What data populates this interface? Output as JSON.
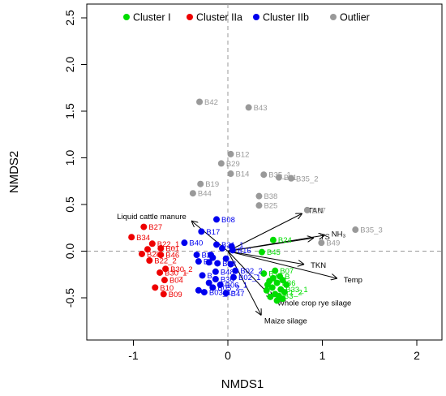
{
  "chart_data": {
    "type": "scatter",
    "xlabel": "NMDS1",
    "ylabel": "NMDS2",
    "xlim": [
      -1.5,
      2.2
    ],
    "ylim": [
      -0.9,
      2.55
    ],
    "x_ticks": [
      -1,
      0,
      1,
      2
    ],
    "y_ticks": [
      -0.5,
      0.0,
      0.5,
      1.0,
      1.5,
      2.0,
      2.5
    ],
    "x_tick_labels": [
      "-1",
      "0",
      "1",
      "2"
    ],
    "y_tick_labels": [
      "-0.5",
      "0.0",
      "0.5",
      "1.0",
      "1.5",
      "2.0",
      "2.5"
    ],
    "reference_lines": {
      "x": 0,
      "y": 0,
      "style": "dashed"
    },
    "legend_position": "top",
    "series": [
      {
        "name": "Cluster I",
        "color": "#00dd00",
        "points": [
          {
            "x": 0.48,
            "y": 0.12,
            "label": "B24"
          },
          {
            "x": 0.36,
            "y": -0.01,
            "label": "B45"
          },
          {
            "x": 0.5,
            "y": -0.21,
            "label": "B07"
          },
          {
            "x": 0.38,
            "y": -0.24,
            "label": "B1"
          },
          {
            "x": 0.55,
            "y": -0.27,
            "label": "B"
          },
          {
            "x": 0.48,
            "y": -0.29,
            "label": ""
          },
          {
            "x": 0.44,
            "y": -0.32,
            "label": ""
          },
          {
            "x": 0.58,
            "y": -0.31,
            "label": ""
          },
          {
            "x": 0.52,
            "y": -0.34,
            "label": "B36"
          },
          {
            "x": 0.42,
            "y": -0.36,
            "label": ""
          },
          {
            "x": 0.62,
            "y": -0.36,
            "label": ""
          },
          {
            "x": 0.47,
            "y": -0.39,
            "label": ""
          },
          {
            "x": 0.56,
            "y": -0.41,
            "label": "B33_1"
          },
          {
            "x": 0.41,
            "y": -0.42,
            "label": ""
          },
          {
            "x": 0.6,
            "y": -0.44,
            "label": "1_2"
          },
          {
            "x": 0.5,
            "y": -0.46,
            "label": ""
          },
          {
            "x": 0.54,
            "y": -0.48,
            "label": "B3"
          },
          {
            "x": 0.45,
            "y": -0.49,
            "label": ""
          },
          {
            "x": 0.58,
            "y": -0.51,
            "label": ""
          },
          {
            "x": 0.52,
            "y": -0.53,
            "label": ""
          }
        ]
      },
      {
        "name": "Cluster IIa",
        "color": "#ee0000",
        "points": [
          {
            "x": -0.89,
            "y": 0.26,
            "label": "B27"
          },
          {
            "x": -1.02,
            "y": 0.15,
            "label": "B34"
          },
          {
            "x": -0.8,
            "y": 0.08,
            "label": "B22_1"
          },
          {
            "x": -0.71,
            "y": 0.03,
            "label": "B01"
          },
          {
            "x": -0.85,
            "y": 0.02,
            "label": ""
          },
          {
            "x": -0.91,
            "y": -0.03,
            "label": "B28"
          },
          {
            "x": -0.71,
            "y": -0.04,
            "label": "B46"
          },
          {
            "x": -0.83,
            "y": -0.1,
            "label": "B22_2"
          },
          {
            "x": -0.66,
            "y": -0.19,
            "label": "B30_2"
          },
          {
            "x": -0.72,
            "y": -0.23,
            "label": "B30_1"
          },
          {
            "x": -0.67,
            "y": -0.31,
            "label": "B04"
          },
          {
            "x": -0.77,
            "y": -0.39,
            "label": "B10"
          },
          {
            "x": -0.68,
            "y": -0.46,
            "label": "B09"
          }
        ]
      },
      {
        "name": "Cluster IIb",
        "color": "#0000ee",
        "points": [
          {
            "x": -0.12,
            "y": 0.34,
            "label": "B08"
          },
          {
            "x": -0.28,
            "y": 0.21,
            "label": "B17"
          },
          {
            "x": -0.46,
            "y": 0.09,
            "label": "B40"
          },
          {
            "x": -0.12,
            "y": 0.07,
            "label": "B31_1"
          },
          {
            "x": 0.04,
            "y": 0.05,
            "label": ""
          },
          {
            "x": -0.06,
            "y": 0.03,
            "label": ""
          },
          {
            "x": 0.05,
            "y": 0.01,
            "label": "B16"
          },
          {
            "x": -0.18,
            "y": -0.04,
            "label": ""
          },
          {
            "x": -0.33,
            "y": -0.04,
            "label": "B2"
          },
          {
            "x": -0.16,
            "y": -0.07,
            "label": ""
          },
          {
            "x": -0.02,
            "y": -0.08,
            "label": ""
          },
          {
            "x": -0.31,
            "y": -0.11,
            "label": "B2"
          },
          {
            "x": -0.2,
            "y": -0.12,
            "label": ""
          },
          {
            "x": -0.11,
            "y": -0.13,
            "label": "B28"
          },
          {
            "x": 0.03,
            "y": -0.14,
            "label": ""
          },
          {
            "x": 0.08,
            "y": -0.21,
            "label": "B02_2"
          },
          {
            "x": -0.13,
            "y": -0.22,
            "label": "B48"
          },
          {
            "x": -0.27,
            "y": -0.26,
            "label": "B"
          },
          {
            "x": 0.06,
            "y": -0.28,
            "label": "B02_1"
          },
          {
            "x": -0.13,
            "y": -0.3,
            "label": "B36"
          },
          {
            "x": -0.2,
            "y": -0.34,
            "label": ""
          },
          {
            "x": -0.08,
            "y": -0.36,
            "label": "B06_1"
          },
          {
            "x": -0.16,
            "y": -0.39,
            "label": "B05_2"
          },
          {
            "x": -0.31,
            "y": -0.42,
            "label": ""
          },
          {
            "x": -0.25,
            "y": -0.44,
            "label": "B03_1"
          },
          {
            "x": -0.02,
            "y": -0.45,
            "label": "B47"
          }
        ]
      },
      {
        "name": "Outlier",
        "color": "#999999",
        "points": [
          {
            "x": -0.3,
            "y": 1.6,
            "label": "B42"
          },
          {
            "x": 0.22,
            "y": 1.54,
            "label": "B43"
          },
          {
            "x": 0.03,
            "y": 1.04,
            "label": "B12"
          },
          {
            "x": -0.07,
            "y": 0.94,
            "label": "B29"
          },
          {
            "x": 0.03,
            "y": 0.83,
            "label": "B14"
          },
          {
            "x": 0.38,
            "y": 0.82,
            "label": "B35_1"
          },
          {
            "x": 0.54,
            "y": 0.79,
            "label": "B11"
          },
          {
            "x": 0.67,
            "y": 0.78,
            "label": "B35_2"
          },
          {
            "x": -0.29,
            "y": 0.72,
            "label": "B19"
          },
          {
            "x": -0.37,
            "y": 0.62,
            "label": "B44"
          },
          {
            "x": 0.33,
            "y": 0.59,
            "label": "B38"
          },
          {
            "x": 0.33,
            "y": 0.49,
            "label": "B25"
          },
          {
            "x": 0.84,
            "y": 0.44,
            "label": "B37"
          },
          {
            "x": 1.35,
            "y": 0.23,
            "label": "B35_3"
          },
          {
            "x": 0.99,
            "y": 0.09,
            "label": "B49"
          }
        ]
      }
    ],
    "vectors": [
      {
        "label": "Liquid cattle manure",
        "x": -0.38,
        "y": 0.32
      },
      {
        "label": "TAN",
        "x": 0.78,
        "y": 0.4
      },
      {
        "label": "TS",
        "x": 0.9,
        "y": 0.14
      },
      {
        "label": "NH₃",
        "x": 1.02,
        "y": 0.17
      },
      {
        "label": "TKN",
        "x": 0.8,
        "y": -0.14
      },
      {
        "label": "Temp",
        "x": 1.15,
        "y": -0.29
      },
      {
        "label": "Whole crop rye silage",
        "x": 0.47,
        "y": -0.5
      },
      {
        "label": "Maize silage",
        "x": 0.35,
        "y": -0.68
      }
    ]
  }
}
